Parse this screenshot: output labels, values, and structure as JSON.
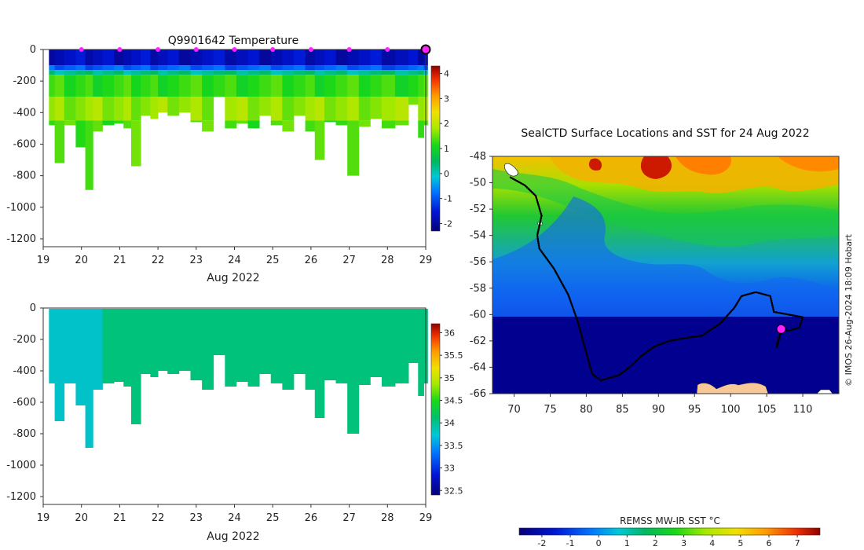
{
  "chart_data": [
    {
      "type": "heatmap",
      "title": "Q9901642  Temperature",
      "xlabel": "Aug 2022",
      "x_ticks": [
        19,
        20,
        21,
        22,
        23,
        24,
        25,
        26,
        27,
        28,
        29
      ],
      "xlim": [
        19,
        29
      ],
      "y_ticks": [
        0,
        -200,
        -400,
        -600,
        -800,
        -1000,
        -1200
      ],
      "ylim": [
        -1250,
        0
      ],
      "colorbar": {
        "ticks": [
          4,
          3,
          2,
          1,
          0,
          -1,
          -2
        ],
        "range": [
          -2.3,
          4.3
        ]
      },
      "profile_markers_day": [
        20,
        21,
        22,
        23,
        24,
        25,
        26,
        27,
        28
      ],
      "latest_profile_day": 29,
      "profile_depths": [
        {
          "x": 19.2,
          "depth": 480
        },
        {
          "x": 19.4,
          "depth": 720
        },
        {
          "x": 19.7,
          "depth": 480
        },
        {
          "x": 20.0,
          "depth": 620
        },
        {
          "x": 20.2,
          "depth": 890
        },
        {
          "x": 20.4,
          "depth": 520
        },
        {
          "x": 20.7,
          "depth": 480
        },
        {
          "x": 21.0,
          "depth": 470
        },
        {
          "x": 21.2,
          "depth": 500
        },
        {
          "x": 21.4,
          "depth": 740
        },
        {
          "x": 21.7,
          "depth": 420
        },
        {
          "x": 21.9,
          "depth": 440
        },
        {
          "x": 22.1,
          "depth": 400
        },
        {
          "x": 22.4,
          "depth": 420
        },
        {
          "x": 22.7,
          "depth": 400
        },
        {
          "x": 23.0,
          "depth": 460
        },
        {
          "x": 23.3,
          "depth": 520
        },
        {
          "x": 23.6,
          "depth": 300
        },
        {
          "x": 23.9,
          "depth": 500
        },
        {
          "x": 24.2,
          "depth": 470
        },
        {
          "x": 24.5,
          "depth": 500
        },
        {
          "x": 24.8,
          "depth": 420
        },
        {
          "x": 25.1,
          "depth": 480
        },
        {
          "x": 25.4,
          "depth": 520
        },
        {
          "x": 25.7,
          "depth": 420
        },
        {
          "x": 26.0,
          "depth": 520
        },
        {
          "x": 26.2,
          "depth": 700
        },
        {
          "x": 26.5,
          "depth": 460
        },
        {
          "x": 26.8,
          "depth": 480
        },
        {
          "x": 27.1,
          "depth": 800
        },
        {
          "x": 27.4,
          "depth": 490
        },
        {
          "x": 27.7,
          "depth": 440
        },
        {
          "x": 28.0,
          "depth": 500
        },
        {
          "x": 28.4,
          "depth": 480
        },
        {
          "x": 28.7,
          "depth": 350
        },
        {
          "x": 28.9,
          "depth": 560
        },
        {
          "x": 29.0,
          "depth": 480
        }
      ],
      "layers": [
        {
          "from_depth": 0,
          "to_depth": 100,
          "value": -1.8
        },
        {
          "from_depth": 100,
          "to_depth": 130,
          "value": -1.0
        },
        {
          "from_depth": 130,
          "to_depth": 160,
          "value": 0.2
        },
        {
          "from_depth": 160,
          "to_depth": 300,
          "value": 1.1
        },
        {
          "from_depth": 300,
          "to_depth": 450,
          "value": 1.6
        },
        {
          "from_depth": 450,
          "to_depth": 900,
          "value": 1.2
        }
      ]
    },
    {
      "type": "heatmap",
      "title": "",
      "xlabel": "Aug 2022",
      "x_ticks": [
        19,
        20,
        21,
        22,
        23,
        24,
        25,
        26,
        27,
        28,
        29
      ],
      "xlim": [
        19,
        29
      ],
      "y_ticks": [
        0,
        -200,
        -400,
        -600,
        -800,
        -1000,
        -1200
      ],
      "ylim": [
        -1250,
        0
      ],
      "colorbar": {
        "ticks": [
          36,
          35.5,
          35,
          34.5,
          34,
          33.5,
          33,
          32.5
        ],
        "range": [
          32.4,
          36.2
        ]
      },
      "segments": [
        {
          "from_day": 19,
          "to_day": 20.6,
          "value": 33.65
        },
        {
          "from_day": 20.6,
          "to_day": 29.1,
          "value": 34.05
        }
      ]
    },
    {
      "type": "heatmap",
      "title": "SealCTD Surface Locations and SST for 24 Aug 2022",
      "x_ticks": [
        70,
        75,
        80,
        85,
        90,
        95,
        100,
        105,
        110
      ],
      "xlim": [
        67,
        115
      ],
      "y_ticks": [
        -48,
        -50,
        -52,
        -54,
        -56,
        -58,
        -60,
        -62,
        -64,
        -66
      ],
      "ylim": [
        -66,
        -48
      ],
      "colorbar_label": "REMSS MW-IR SST °C",
      "colorbar_ticks": [
        -2,
        -1,
        0,
        1,
        2,
        3,
        4,
        5,
        6,
        7
      ],
      "colorbar_range": [
        -2.8,
        7.8
      ],
      "credit": "© IMOS 26-Aug-2024 18:09 Hobart",
      "seal_track": [
        [
          69.5,
          -49.6
        ],
        [
          71.5,
          -50.2
        ],
        [
          73.0,
          -51.0
        ],
        [
          73.8,
          -52.5
        ],
        [
          73.2,
          -54.0
        ],
        [
          73.5,
          -55.0
        ],
        [
          75.5,
          -56.5
        ],
        [
          77.5,
          -58.5
        ],
        [
          78.8,
          -60.5
        ],
        [
          79.8,
          -62.5
        ],
        [
          80.8,
          -64.5
        ],
        [
          82.0,
          -65.0
        ],
        [
          84.5,
          -64.6
        ],
        [
          86.0,
          -64.0
        ],
        [
          87.5,
          -63.2
        ],
        [
          89.5,
          -62.4
        ],
        [
          91.5,
          -62.0
        ],
        [
          93.5,
          -61.8
        ],
        [
          96.0,
          -61.6
        ],
        [
          98.5,
          -60.7
        ],
        [
          100.5,
          -59.5
        ],
        [
          101.5,
          -58.6
        ],
        [
          103.5,
          -58.3
        ],
        [
          105.5,
          -58.6
        ],
        [
          106.0,
          -59.8
        ],
        [
          108.0,
          -60.0
        ],
        [
          110.0,
          -60.2
        ],
        [
          109.5,
          -61.0
        ],
        [
          108.2,
          -61.2
        ],
        [
          107.0,
          -61.2
        ],
        [
          106.4,
          -62.5
        ],
        [
          106.5,
          -62.0
        ],
        [
          107.0,
          -61.3
        ]
      ],
      "current_position": [
        107.0,
        -61.1
      ]
    }
  ]
}
